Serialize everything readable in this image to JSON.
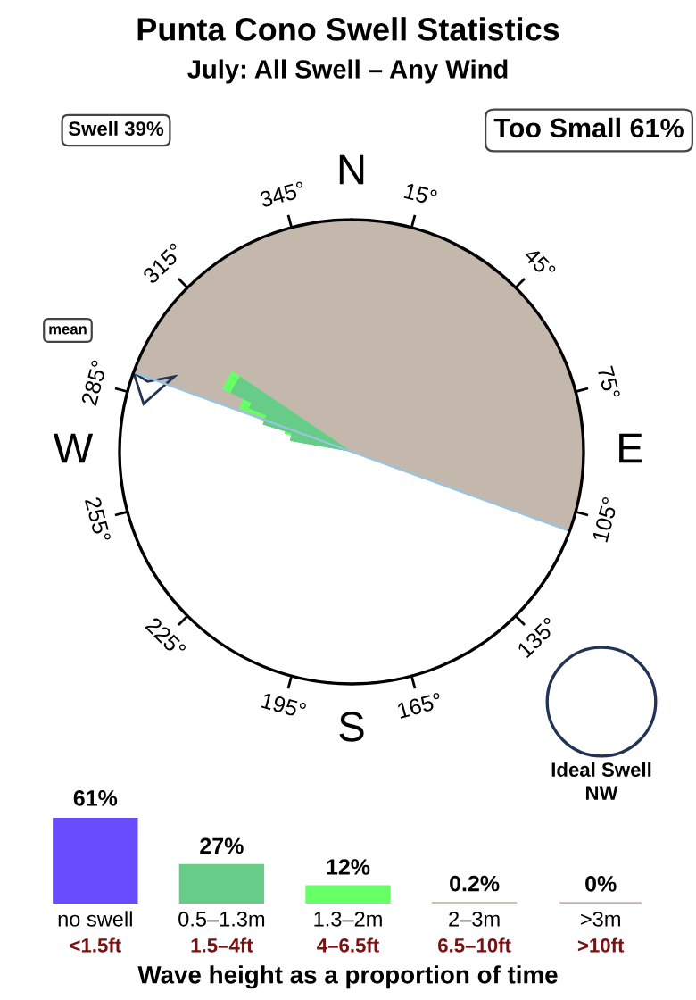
{
  "chart_data": [
    {
      "type": "other",
      "title": "Punta Cono Swell Statistics",
      "subtitle": "July: All Swell – Any Wind",
      "annotations": [
        "Swell 39%",
        "Too Small 61%",
        "mean",
        "Ideal Swell",
        "NW",
        "N",
        "15°",
        "45°",
        "75°",
        "E",
        "105°",
        "135°",
        "165°",
        "S",
        "195°",
        "225°",
        "255°",
        "W",
        "285°",
        "315°",
        "345°"
      ]
    },
    {
      "type": "bar",
      "xlabel": "Wave height as a proportion of time",
      "categories": [
        "no swell",
        "0.5–1.3m",
        "1.3–2m",
        "2–3m",
        ">3m"
      ],
      "values": [
        61,
        27,
        12,
        0.2,
        0
      ],
      "colors": [
        "#6a4cff",
        "#66cc88",
        "#66ff66",
        "#c8c0b0",
        "#c8b0a8"
      ],
      "value_labels": [
        "61%",
        "27%",
        "12%",
        "0.2%",
        "0%"
      ],
      "tick_labels": "x",
      "grid": false,
      "legend": false,
      "annotations": [
        "<1.5ft",
        "1.5–4ft",
        "4–6.5ft",
        "6.5–10ft",
        ">10ft"
      ]
    }
  ]
}
